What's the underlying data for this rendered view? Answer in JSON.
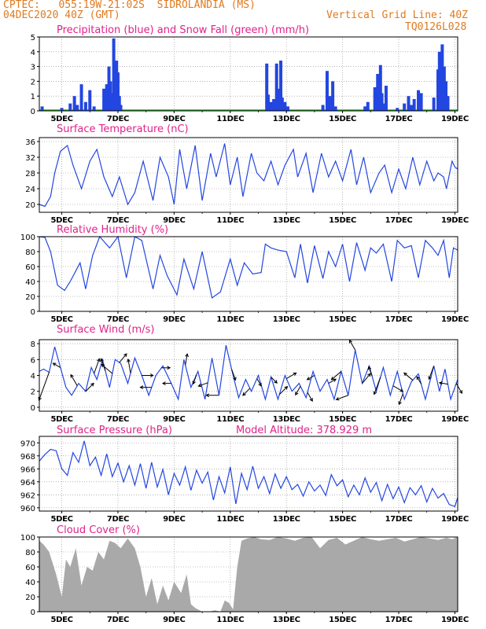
{
  "header": {
    "line1_left": "CPTEC:   055:19W-21:02S  SIDROLANDIA (MS)",
    "line2_left": "04DEC2020 40Z (GMT)",
    "line2_right": "Vertical Grid Line: 40Z",
    "line3_right": "TQ0126L028",
    "model_altitude": "Model Altitude: 378.929  m"
  },
  "colors": {
    "header": "#e07a1f",
    "title": "#e0228a",
    "line": "#2346e0",
    "precip": "#2346e0",
    "snow": "#2aa82a",
    "cloud": "#a9a9a9",
    "arrow": "#000000"
  },
  "x_axis": {
    "ticks": [
      "5DEC",
      "7DEC",
      "9DEC",
      "11DEC",
      "13DEC",
      "15DEC",
      "17DEC",
      "19DEC"
    ],
    "tick_positions_days": [
      0.6,
      2.6,
      4.6,
      6.6,
      8.6,
      10.6,
      12.6,
      14.6
    ],
    "range_days": [
      -0.2,
      14.7
    ]
  },
  "chart_data": [
    {
      "type": "bar",
      "title": "Precipitation (blue) and Snow Fall (green) (mm/h)",
      "ylim": [
        0,
        5
      ],
      "yticks": [
        0,
        1,
        2,
        3,
        4,
        5
      ],
      "series": [
        {
          "name": "Precipitation",
          "points": [
            [
              -0.1,
              0.3
            ],
            [
              0.6,
              0.2
            ],
            [
              0.9,
              0.5
            ],
            [
              1.05,
              1.0
            ],
            [
              1.15,
              0.4
            ],
            [
              1.3,
              1.8
            ],
            [
              1.45,
              0.6
            ],
            [
              1.6,
              1.4
            ],
            [
              1.75,
              0.3
            ],
            [
              2.1,
              1.5
            ],
            [
              2.2,
              1.8
            ],
            [
              2.28,
              3.0
            ],
            [
              2.33,
              2.0
            ],
            [
              2.38,
              1.2
            ],
            [
              2.45,
              4.9
            ],
            [
              2.5,
              2.8
            ],
            [
              2.55,
              3.4
            ],
            [
              2.6,
              2.6
            ],
            [
              2.65,
              1.0
            ],
            [
              2.7,
              0.4
            ],
            [
              7.9,
              3.2
            ],
            [
              7.95,
              1.1
            ],
            [
              8.05,
              0.6
            ],
            [
              8.15,
              0.8
            ],
            [
              8.25,
              3.2
            ],
            [
              8.3,
              1.5
            ],
            [
              8.4,
              3.4
            ],
            [
              8.45,
              0.9
            ],
            [
              8.55,
              0.6
            ],
            [
              8.65,
              0.3
            ],
            [
              9.9,
              0.4
            ],
            [
              10.05,
              2.7
            ],
            [
              10.15,
              1.0
            ],
            [
              10.25,
              2.0
            ],
            [
              10.35,
              0.3
            ],
            [
              11.4,
              0.3
            ],
            [
              11.5,
              0.6
            ],
            [
              11.75,
              1.6
            ],
            [
              11.85,
              2.5
            ],
            [
              11.95,
              3.1
            ],
            [
              12.0,
              1.2
            ],
            [
              12.1,
              0.5
            ],
            [
              12.15,
              1.7
            ],
            [
              12.55,
              0.2
            ],
            [
              12.8,
              0.5
            ],
            [
              12.95,
              1.0
            ],
            [
              13.05,
              0.4
            ],
            [
              13.15,
              0.8
            ],
            [
              13.3,
              1.4
            ],
            [
              13.4,
              1.2
            ],
            [
              13.85,
              0.9
            ],
            [
              14.0,
              2.8
            ],
            [
              14.05,
              4.0
            ],
            [
              14.15,
              4.5
            ],
            [
              14.22,
              3.0
            ],
            [
              14.28,
              2.0
            ],
            [
              14.35,
              1.0
            ]
          ]
        },
        {
          "name": "Snow Fall",
          "values": "0"
        }
      ]
    },
    {
      "type": "line",
      "title": "Surface Temperature (nC)",
      "ylim": [
        18,
        37
      ],
      "yticks": [
        20,
        24,
        28,
        32,
        36
      ],
      "x": [
        -0.2,
        0.0,
        0.2,
        0.35,
        0.55,
        0.8,
        1.0,
        1.3,
        1.6,
        1.85,
        2.1,
        2.4,
        2.65,
        2.95,
        3.2,
        3.5,
        3.85,
        4.1,
        4.4,
        4.6,
        4.8,
        5.05,
        5.35,
        5.6,
        5.9,
        6.1,
        6.4,
        6.6,
        6.85,
        7.05,
        7.35,
        7.55,
        7.8,
        8.05,
        8.3,
        8.55,
        8.85,
        9.0,
        9.3,
        9.55,
        9.85,
        10.1,
        10.35,
        10.6,
        10.9,
        11.1,
        11.35,
        11.6,
        11.9,
        12.1,
        12.35,
        12.6,
        12.85,
        13.1,
        13.35,
        13.6,
        13.85,
        14.0,
        14.2,
        14.3,
        14.5,
        14.6,
        14.7
      ],
      "y": [
        20,
        19.5,
        22,
        28,
        33.5,
        35,
        30,
        24,
        31,
        34,
        27,
        22,
        27,
        20,
        23,
        31,
        21,
        32,
        27,
        20,
        34,
        24,
        35,
        21,
        33,
        27,
        35.5,
        25,
        32,
        22,
        33,
        28,
        26,
        31,
        25,
        30,
        34,
        27,
        33,
        23,
        33,
        27,
        31,
        26,
        34,
        25,
        32,
        23,
        28,
        30,
        23,
        29,
        24,
        32,
        25,
        31,
        26,
        28,
        27,
        24,
        31,
        29.5,
        29
      ]
    },
    {
      "type": "line",
      "title": "Relative Humidity (%)",
      "ylim": [
        0,
        100
      ],
      "yticks": [
        0,
        20,
        40,
        60,
        80,
        100
      ],
      "x": [
        -0.2,
        0.0,
        0.2,
        0.45,
        0.7,
        0.9,
        1.25,
        1.45,
        1.7,
        1.95,
        2.3,
        2.6,
        2.9,
        3.2,
        3.45,
        3.85,
        4.1,
        4.35,
        4.7,
        4.95,
        5.3,
        5.6,
        5.95,
        6.25,
        6.6,
        6.85,
        7.1,
        7.4,
        7.7,
        7.85,
        8.05,
        8.3,
        8.6,
        8.9,
        9.1,
        9.35,
        9.6,
        9.9,
        10.1,
        10.35,
        10.6,
        10.85,
        11.1,
        11.4,
        11.6,
        11.8,
        12.05,
        12.35,
        12.55,
        12.8,
        13.05,
        13.3,
        13.55,
        13.8,
        14.0,
        14.2,
        14.4,
        14.55,
        14.7
      ],
      "y": [
        100,
        99,
        80,
        35,
        28,
        40,
        65,
        30,
        75,
        100,
        85,
        100,
        45,
        100,
        95,
        30,
        75,
        48,
        22,
        70,
        30,
        80,
        18,
        26,
        70,
        35,
        65,
        50,
        52,
        90,
        85,
        82,
        80,
        45,
        90,
        38,
        88,
        44,
        80,
        60,
        90,
        40,
        92,
        55,
        85,
        78,
        90,
        40,
        95,
        85,
        88,
        45,
        95,
        85,
        75,
        95,
        45,
        85,
        82
      ]
    },
    {
      "type": "line",
      "title": "Surface Wind (m/s)",
      "ylim": [
        -0.5,
        8.5
      ],
      "yticks": [
        0,
        2,
        4,
        6,
        8
      ],
      "x": [
        -0.2,
        -0.05,
        0.15,
        0.35,
        0.55,
        0.75,
        0.95,
        1.2,
        1.45,
        1.65,
        1.85,
        2.05,
        2.3,
        2.5,
        2.7,
        2.95,
        3.2,
        3.45,
        3.7,
        3.95,
        4.2,
        4.5,
        4.75,
        4.95,
        5.2,
        5.45,
        5.7,
        5.95,
        6.2,
        6.45,
        6.7,
        6.9,
        7.15,
        7.35,
        7.6,
        7.85,
        8.05,
        8.3,
        8.55,
        8.8,
        9.05,
        9.3,
        9.55,
        9.8,
        10.05,
        10.3,
        10.55,
        10.8,
        11.05,
        11.3,
        11.55,
        11.8,
        12.05,
        12.3,
        12.55,
        12.8,
        13.05,
        13.3,
        13.55,
        13.85,
        14.05,
        14.25,
        14.45,
        14.7
      ],
      "y": [
        4.5,
        4.8,
        4.4,
        7.6,
        5.0,
        2.5,
        1.5,
        3.0,
        2.0,
        5.0,
        3.5,
        6.0,
        2.5,
        6.0,
        5.5,
        3.0,
        6.2,
        4.0,
        1.5,
        4.0,
        5.2,
        3.0,
        1.0,
        6.0,
        2.5,
        4.5,
        1.0,
        6.2,
        1.5,
        7.8,
        4.0,
        1.2,
        3.5,
        2.0,
        4.0,
        1.0,
        3.8,
        1.0,
        4.0,
        2.0,
        3.0,
        1.2,
        4.5,
        2.0,
        3.5,
        1.0,
        4.5,
        1.5,
        7.2,
        3.0,
        5.2,
        2.0,
        5.0,
        1.5,
        4.5,
        1.0,
        3.2,
        4.2,
        1.0,
        5.2,
        2.0,
        4.8,
        1.0,
        3.5
      ],
      "arrows": [
        {
          "x": 0.15,
          "dir_deg": 200,
          "speed": 4.2
        },
        {
          "x": 0.55,
          "dir_deg": 300,
          "speed": 1.2
        },
        {
          "x": 1.15,
          "dir_deg": 330,
          "speed": 1.8
        },
        {
          "x": 1.45,
          "dir_deg": 45,
          "speed": 1.6
        },
        {
          "x": 1.75,
          "dir_deg": 20,
          "speed": 2.2
        },
        {
          "x": 2.15,
          "dir_deg": 340,
          "speed": 1.8
        },
        {
          "x": 2.4,
          "dir_deg": 310,
          "speed": 2.0
        },
        {
          "x": 2.65,
          "dir_deg": 40,
          "speed": 1.6
        },
        {
          "x": 3.05,
          "dir_deg": 350,
          "speed": 2.0
        },
        {
          "x": 3.45,
          "dir_deg": 90,
          "speed": 1.6
        },
        {
          "x": 3.8,
          "dir_deg": 270,
          "speed": 1.6
        },
        {
          "x": 4.15,
          "dir_deg": 90,
          "speed": 1.2
        },
        {
          "x": 4.5,
          "dir_deg": 270,
          "speed": 1.2
        },
        {
          "x": 5.0,
          "dir_deg": 10,
          "speed": 1.6
        },
        {
          "x": 5.4,
          "dir_deg": 200,
          "speed": 1.4
        },
        {
          "x": 5.8,
          "dir_deg": 250,
          "speed": 1.4
        },
        {
          "x": 6.2,
          "dir_deg": 270,
          "speed": 1.8
        },
        {
          "x": 6.65,
          "dir_deg": 160,
          "speed": 1.6
        },
        {
          "x": 7.3,
          "dir_deg": 225,
          "speed": 1.4
        },
        {
          "x": 7.55,
          "dir_deg": 150,
          "speed": 1.2
        },
        {
          "x": 8.05,
          "dir_deg": 135,
          "speed": 1.2
        },
        {
          "x": 8.35,
          "dir_deg": 45,
          "speed": 1.6
        },
        {
          "x": 8.6,
          "dir_deg": 60,
          "speed": 1.6
        },
        {
          "x": 9.1,
          "dir_deg": 210,
          "speed": 1.4
        },
        {
          "x": 9.35,
          "dir_deg": 150,
          "speed": 1.4
        },
        {
          "x": 9.6,
          "dir_deg": 240,
          "speed": 1.2
        },
        {
          "x": 10.1,
          "dir_deg": 60,
          "speed": 1.2
        },
        {
          "x": 10.55,
          "dir_deg": 230,
          "speed": 1.8
        },
        {
          "x": 10.8,
          "dir_deg": 250,
          "speed": 1.8
        },
        {
          "x": 11.05,
          "dir_deg": 330,
          "speed": 1.6
        },
        {
          "x": 11.3,
          "dir_deg": 40,
          "speed": 1.8
        },
        {
          "x": 11.65,
          "dir_deg": 340,
          "speed": 1.4
        },
        {
          "x": 11.95,
          "dir_deg": 200,
          "speed": 2.6
        },
        {
          "x": 12.4,
          "dir_deg": 120,
          "speed": 1.6
        },
        {
          "x": 12.75,
          "dir_deg": 200,
          "speed": 1.6
        },
        {
          "x": 13.1,
          "dir_deg": 310,
          "speed": 1.6
        },
        {
          "x": 13.4,
          "dir_deg": 330,
          "speed": 1.2
        },
        {
          "x": 13.85,
          "dir_deg": 200,
          "speed": 2.0
        },
        {
          "x": 14.35,
          "dir_deg": 280,
          "speed": 1.2
        },
        {
          "x": 14.65,
          "dir_deg": 150,
          "speed": 1.6
        }
      ]
    },
    {
      "type": "line",
      "title": "Surface Pressure (hPa)",
      "ylim": [
        959.5,
        971
      ],
      "yticks": [
        960,
        962,
        964,
        966,
        968,
        970
      ],
      "x": [
        -0.2,
        0.0,
        0.2,
        0.4,
        0.6,
        0.8,
        1.0,
        1.2,
        1.4,
        1.6,
        1.8,
        2.0,
        2.2,
        2.4,
        2.6,
        2.8,
        3.0,
        3.2,
        3.4,
        3.6,
        3.8,
        4.0,
        4.2,
        4.4,
        4.6,
        4.8,
        5.0,
        5.2,
        5.4,
        5.6,
        5.8,
        6.0,
        6.2,
        6.4,
        6.6,
        6.8,
        7.0,
        7.2,
        7.4,
        7.6,
        7.8,
        8.0,
        8.2,
        8.4,
        8.6,
        8.8,
        9.0,
        9.2,
        9.4,
        9.6,
        9.8,
        10.0,
        10.2,
        10.4,
        10.6,
        10.8,
        11.0,
        11.2,
        11.4,
        11.6,
        11.8,
        12.0,
        12.2,
        12.4,
        12.6,
        12.8,
        13.0,
        13.2,
        13.4,
        13.6,
        13.8,
        14.0,
        14.2,
        14.4,
        14.6,
        14.7
      ],
      "y": [
        967.2,
        968.2,
        969.0,
        968.8,
        966.0,
        965.0,
        968.5,
        967.0,
        970.3,
        966.5,
        967.8,
        965.0,
        968.3,
        964.8,
        966.9,
        964.0,
        966.5,
        963.5,
        966.8,
        963.0,
        967.0,
        963.2,
        965.9,
        962.0,
        965.3,
        963.5,
        966.3,
        962.7,
        965.8,
        963.8,
        965.5,
        961.2,
        964.8,
        962.3,
        966.3,
        960.6,
        965.3,
        962.8,
        966.4,
        963.0,
        964.8,
        962.2,
        965.2,
        963.0,
        964.8,
        962.8,
        963.6,
        961.8,
        964.0,
        962.6,
        963.5,
        961.9,
        965.1,
        963.4,
        964.3,
        961.7,
        963.5,
        962.0,
        964.6,
        962.4,
        963.9,
        961.1,
        963.6,
        961.4,
        963.2,
        960.8,
        963.1,
        962.0,
        963.4,
        960.9,
        963.0,
        961.5,
        962.2,
        960.5,
        960.2,
        961.6
      ]
    },
    {
      "type": "area",
      "title": "Cloud Cover (%)",
      "ylim": [
        0,
        100
      ],
      "yticks": [
        0,
        20,
        40,
        60,
        80,
        100
      ],
      "x": [
        -0.2,
        -0.05,
        0.15,
        0.4,
        0.6,
        0.75,
        0.9,
        1.1,
        1.3,
        1.5,
        1.7,
        1.9,
        2.1,
        2.3,
        2.5,
        2.7,
        2.95,
        3.2,
        3.4,
        3.6,
        3.8,
        4.0,
        4.2,
        4.4,
        4.6,
        4.85,
        5.05,
        5.2,
        5.35,
        5.6,
        5.85,
        6.05,
        6.25,
        6.4,
        6.55,
        6.7,
        6.85,
        7.0,
        7.2,
        7.45,
        7.7,
        8.0,
        8.3,
        8.6,
        8.9,
        9.2,
        9.5,
        9.8,
        10.1,
        10.4,
        10.7,
        11.0,
        11.3,
        11.6,
        11.9,
        12.2,
        12.5,
        12.8,
        13.1,
        13.4,
        13.7,
        14.0,
        14.3,
        14.5,
        14.7
      ],
      "y": [
        95,
        90,
        80,
        50,
        20,
        70,
        60,
        85,
        35,
        60,
        55,
        80,
        70,
        95,
        92,
        85,
        98,
        85,
        60,
        20,
        45,
        10,
        35,
        15,
        40,
        25,
        50,
        10,
        5,
        0,
        0,
        2,
        0,
        15,
        12,
        3,
        60,
        95,
        98,
        100,
        97,
        96,
        100,
        98,
        95,
        99,
        100,
        85,
        96,
        99,
        90,
        95,
        100,
        97,
        95,
        97,
        99,
        94,
        97,
        100,
        98,
        96,
        99,
        97,
        100
      ]
    }
  ]
}
